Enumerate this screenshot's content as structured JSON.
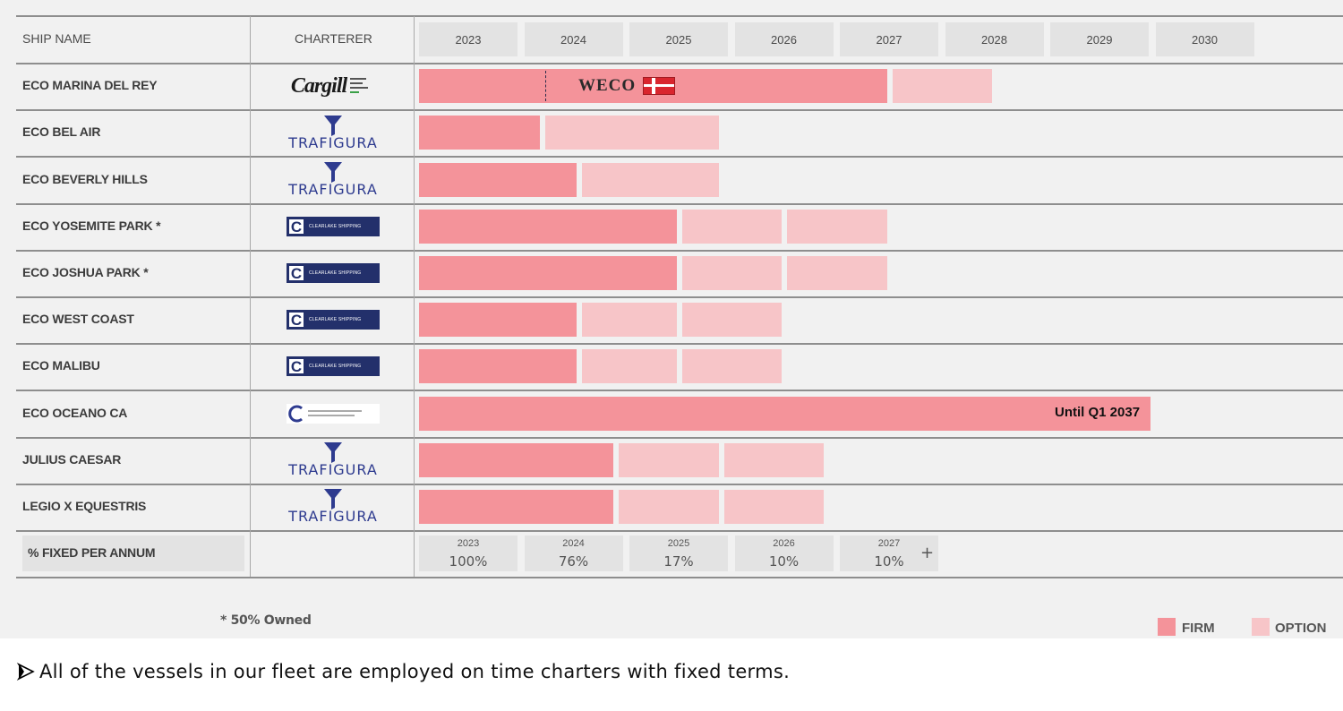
{
  "header": {
    "ship_col": "SHIP NAME",
    "charterer_col": "CHARTERER"
  },
  "years": [
    "2023",
    "2024",
    "2025",
    "2026",
    "2027",
    "2028",
    "2029",
    "2030"
  ],
  "colors": {
    "firm": "#f4939a",
    "option": "#f7c5c8"
  },
  "chart_data": {
    "type": "bar",
    "orientation": "horizontal-gantt",
    "x_axis": {
      "ticks": [
        "2023",
        "2024",
        "2025",
        "2026",
        "2027",
        "2028",
        "2029",
        "2030"
      ]
    },
    "series_names": [
      "FIRM",
      "OPTION"
    ],
    "rows": [
      {
        "ship": "ECO MARINA DEL REY",
        "charterer": "Cargill",
        "charterer_logo": "cargill-logo",
        "firm": [
          2023.0,
          2027.45
        ],
        "options": [
          [
            2027.5,
            2028.45
          ]
        ],
        "annotation": "WECO",
        "marker_at": 2024.2
      },
      {
        "ship": "ECO BEL AIR",
        "charterer": "TRAFIGURA",
        "charterer_logo": "trafigura-logo",
        "firm": [
          2023.0,
          2024.15
        ],
        "options": [
          [
            2024.2,
            2025.85
          ]
        ]
      },
      {
        "ship": "ECO BEVERLY HILLS",
        "charterer": "TRAFIGURA",
        "charterer_logo": "trafigura-logo",
        "firm": [
          2023.0,
          2024.5
        ],
        "options": [
          [
            2024.55,
            2025.85
          ]
        ]
      },
      {
        "ship": "ECO YOSEMITE PARK *",
        "charterer": "CLEARLAKE SHIPPING",
        "charterer_logo": "clearlake-logo",
        "firm": [
          2023.0,
          2025.45
        ],
        "options": [
          [
            2025.5,
            2026.45
          ],
          [
            2026.5,
            2027.45
          ]
        ]
      },
      {
        "ship": "ECO JOSHUA PARK *",
        "charterer": "CLEARLAKE SHIPPING",
        "charterer_logo": "clearlake-logo",
        "firm": [
          2023.0,
          2025.45
        ],
        "options": [
          [
            2025.5,
            2026.45
          ],
          [
            2026.5,
            2027.45
          ]
        ]
      },
      {
        "ship": "ECO WEST COAST",
        "charterer": "CLEARLAKE SHIPPING",
        "charterer_logo": "clearlake-logo",
        "firm": [
          2023.0,
          2024.5
        ],
        "options": [
          [
            2024.55,
            2025.45
          ],
          [
            2025.5,
            2026.45
          ]
        ]
      },
      {
        "ship": "ECO MALIBU",
        "charterer": "CLEARLAKE SHIPPING",
        "charterer_logo": "clearlake-logo",
        "firm": [
          2023.0,
          2024.5
        ],
        "options": [
          [
            2024.55,
            2025.45
          ],
          [
            2025.5,
            2026.45
          ]
        ]
      },
      {
        "ship": "ECO OCEANO CA",
        "charterer": "CENTRAL TANKERS CHARTERING INC",
        "charterer_logo": "central-tankers-logo",
        "firm": [
          2023.0,
          2029.95
        ],
        "options": [],
        "label": "Until Q1 2037"
      },
      {
        "ship": "JULIUS CAESAR",
        "charterer": "TRAFIGURA",
        "charterer_logo": "trafigura-logo",
        "firm": [
          2023.0,
          2024.85
        ],
        "options": [
          [
            2024.9,
            2025.85
          ],
          [
            2025.9,
            2026.85
          ]
        ]
      },
      {
        "ship": "LEGIO X EQUESTRIS",
        "charterer": "TRAFIGURA",
        "charterer_logo": "trafigura-logo",
        "firm": [
          2023.0,
          2024.85
        ],
        "options": [
          [
            2024.9,
            2025.85
          ],
          [
            2025.9,
            2026.85
          ]
        ]
      }
    ]
  },
  "fixed": {
    "label": "% FIXED PER ANNUM",
    "items": [
      {
        "year": "2023",
        "value": "100%"
      },
      {
        "year": "2024",
        "value": "76%"
      },
      {
        "year": "2025",
        "value": "17%"
      },
      {
        "year": "2026",
        "value": "10%"
      },
      {
        "year": "2027",
        "value": "10%"
      }
    ],
    "plus": "+"
  },
  "footnote": "* 50% Owned",
  "legend": {
    "firm": "FIRM",
    "option": "OPTION"
  },
  "bullet_text": "All of the vessels in our fleet are employed on time charters with fixed terms.",
  "bullet_icon": "arrow-bullet-icon"
}
